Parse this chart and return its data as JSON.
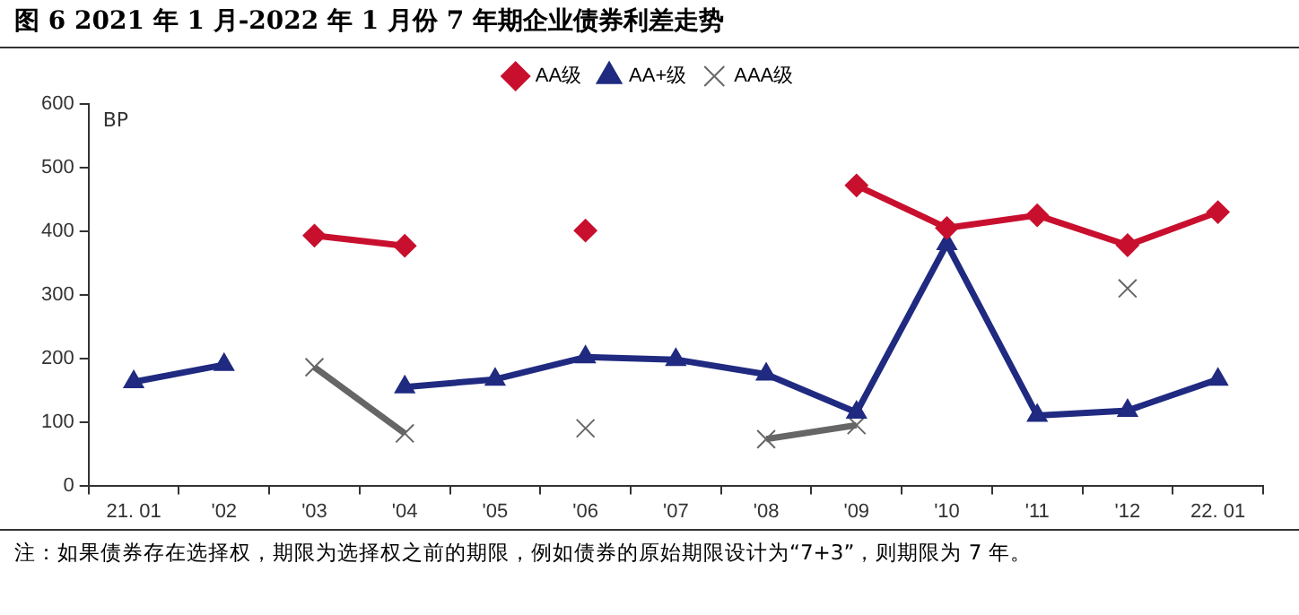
{
  "chart_data": {
    "type": "line",
    "title": "图 6   2021 年 1 月-2022 年 1 月份 7 年期企业债券利差走势",
    "ylabel": "BP",
    "categories": [
      "21. 01",
      "'02",
      "'03",
      "'04",
      "'05",
      "'06",
      "'07",
      "'08",
      "'09",
      "'10",
      "'11",
      "'12",
      "22. 01"
    ],
    "series": [
      {
        "name": "AA级",
        "color": "#c8102e",
        "marker": "diamond",
        "values": [
          null,
          null,
          393,
          377,
          null,
          401,
          null,
          null,
          472,
          405,
          425,
          378,
          430
        ]
      },
      {
        "name": "AA+级",
        "color": "#1f2a80",
        "marker": "triangle",
        "values": [
          163,
          190,
          null,
          155,
          167,
          202,
          198,
          175,
          115,
          380,
          110,
          118,
          167
        ]
      },
      {
        "name": "AAA级",
        "color": "#666666",
        "marker": "cross",
        "values": [
          null,
          null,
          186,
          82,
          null,
          90,
          null,
          73,
          95,
          null,
          null,
          310,
          null
        ]
      }
    ],
    "ylim": [
      0,
      600
    ],
    "yticks": [
      0,
      100,
      200,
      300,
      400,
      500,
      600
    ],
    "grid": false,
    "legend": "top",
    "annotations": [
      "注：如果债券存在选择权，期限为选择权之前的期限，例如债券的原始期限设计为“7+3”，则期限为 7 年。"
    ]
  }
}
